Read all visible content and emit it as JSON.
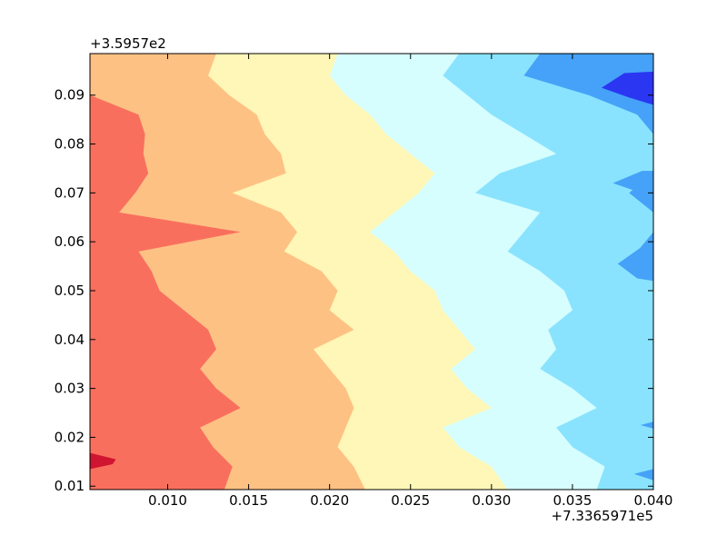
{
  "chart_data": {
    "type": "contourf",
    "title": "",
    "xlabel": "",
    "ylabel": "",
    "x_offset_text": "+7.3365971e5",
    "y_offset_text": "+3.5957e2",
    "xlim": [
      0.0052,
      0.04
    ],
    "ylim": [
      0.0093,
      0.0985
    ],
    "x_ticks": [
      0.01,
      0.015,
      0.02,
      0.025,
      0.03,
      0.035,
      0.04
    ],
    "x_tick_labels": [
      "0.010",
      "0.015",
      "0.020",
      "0.025",
      "0.030",
      "0.035",
      "0.040"
    ],
    "y_ticks": [
      0.01,
      0.02,
      0.03,
      0.04,
      0.05,
      0.06,
      0.07,
      0.08,
      0.09
    ],
    "y_tick_labels": [
      "0.01",
      "0.02",
      "0.03",
      "0.04",
      "0.05",
      "0.06",
      "0.07",
      "0.08",
      "0.09"
    ],
    "colormap": "jet",
    "levels": [
      {
        "name": "level-1",
        "color": "#2a36f2"
      },
      {
        "name": "level-2",
        "color": "#45a2f8"
      },
      {
        "name": "level-3",
        "color": "#89e3fe"
      },
      {
        "name": "level-4",
        "color": "#d6feff"
      },
      {
        "name": "level-5",
        "color": "#fff7b7"
      },
      {
        "name": "level-6",
        "color": "#fec184"
      },
      {
        "name": "level-7",
        "color": "#f96f5d"
      },
      {
        "name": "level-8",
        "color": "#cf1530"
      }
    ],
    "boundary_samples_y": [
      0.0985,
      0.094,
      0.09,
      0.086,
      0.082,
      0.078,
      0.074,
      0.07,
      0.066,
      0.062,
      0.058,
      0.054,
      0.05,
      0.046,
      0.042,
      0.038,
      0.034,
      0.03,
      0.026,
      0.022,
      0.018,
      0.014,
      0.0093
    ],
    "boundaries_x": [
      {
        "between": [
          "level-7",
          "level-6"
        ],
        "x": [
          0.0052,
          0.0052,
          0.0052,
          0.0082,
          0.0086,
          0.0085,
          0.0088,
          0.008,
          0.007,
          0.0145,
          0.0082,
          0.009,
          0.0095,
          0.011,
          0.0125,
          0.013,
          0.012,
          0.013,
          0.0145,
          0.012,
          0.0128,
          0.014,
          0.0135
        ]
      },
      {
        "between": [
          "level-6",
          "level-5"
        ],
        "x": [
          0.013,
          0.0125,
          0.0138,
          0.0155,
          0.016,
          0.017,
          0.0173,
          0.014,
          0.017,
          0.018,
          0.0172,
          0.0195,
          0.0205,
          0.02,
          0.0215,
          0.019,
          0.02,
          0.021,
          0.0215,
          0.021,
          0.0205,
          0.0215,
          0.0222
        ]
      },
      {
        "between": [
          "level-5",
          "level-4"
        ],
        "x": [
          0.0205,
          0.02,
          0.021,
          0.0225,
          0.0235,
          0.025,
          0.0265,
          0.0255,
          0.024,
          0.0225,
          0.024,
          0.025,
          0.0265,
          0.027,
          0.028,
          0.029,
          0.0275,
          0.0285,
          0.03,
          0.027,
          0.028,
          0.03,
          0.031
        ]
      },
      {
        "between": [
          "level-4",
          "level-3"
        ],
        "x": [
          0.028,
          0.027,
          0.0285,
          0.03,
          0.032,
          0.034,
          0.0305,
          0.029,
          0.033,
          0.032,
          0.031,
          0.033,
          0.0345,
          0.035,
          0.0335,
          0.034,
          0.033,
          0.035,
          0.0365,
          0.034,
          0.035,
          0.037,
          0.0365
        ]
      },
      {
        "between": [
          "level-3",
          "level-2"
        ],
        "x": [
          0.033,
          0.032,
          0.036,
          0.039,
          0.04,
          0.04,
          0.04,
          0.0385,
          0.04,
          0.04,
          0.039,
          0.04,
          0.04,
          0.04,
          0.04,
          0.04,
          0.04,
          0.04,
          0.04,
          0.04,
          0.04,
          0.04,
          0.04
        ]
      }
    ],
    "patches": [
      {
        "level": "level-1",
        "points": [
          [
            0.0368,
            0.0915
          ],
          [
            0.0382,
            0.0945
          ],
          [
            0.04,
            0.0948
          ],
          [
            0.04,
            0.088
          ],
          [
            0.0385,
            0.0895
          ]
        ]
      },
      {
        "level": "level-2",
        "points": [
          [
            0.0375,
            0.072
          ],
          [
            0.0393,
            0.0745
          ],
          [
            0.04,
            0.0745
          ],
          [
            0.04,
            0.0705
          ],
          [
            0.0388,
            0.0705
          ]
        ]
      },
      {
        "level": "level-2",
        "points": [
          [
            0.0378,
            0.0555
          ],
          [
            0.0393,
            0.059
          ],
          [
            0.04,
            0.0595
          ],
          [
            0.04,
            0.052
          ],
          [
            0.039,
            0.0525
          ]
        ]
      },
      {
        "level": "level-2",
        "points": [
          [
            0.0392,
            0.0225
          ],
          [
            0.04,
            0.0232
          ],
          [
            0.04,
            0.0218
          ]
        ]
      },
      {
        "level": "level-2",
        "points": [
          [
            0.0388,
            0.0125
          ],
          [
            0.04,
            0.0135
          ],
          [
            0.04,
            0.0112
          ]
        ]
      },
      {
        "level": "level-8",
        "points": [
          [
            0.0052,
            0.0135
          ],
          [
            0.0066,
            0.0145
          ],
          [
            0.0068,
            0.0155
          ],
          [
            0.0052,
            0.0168
          ]
        ]
      }
    ]
  }
}
